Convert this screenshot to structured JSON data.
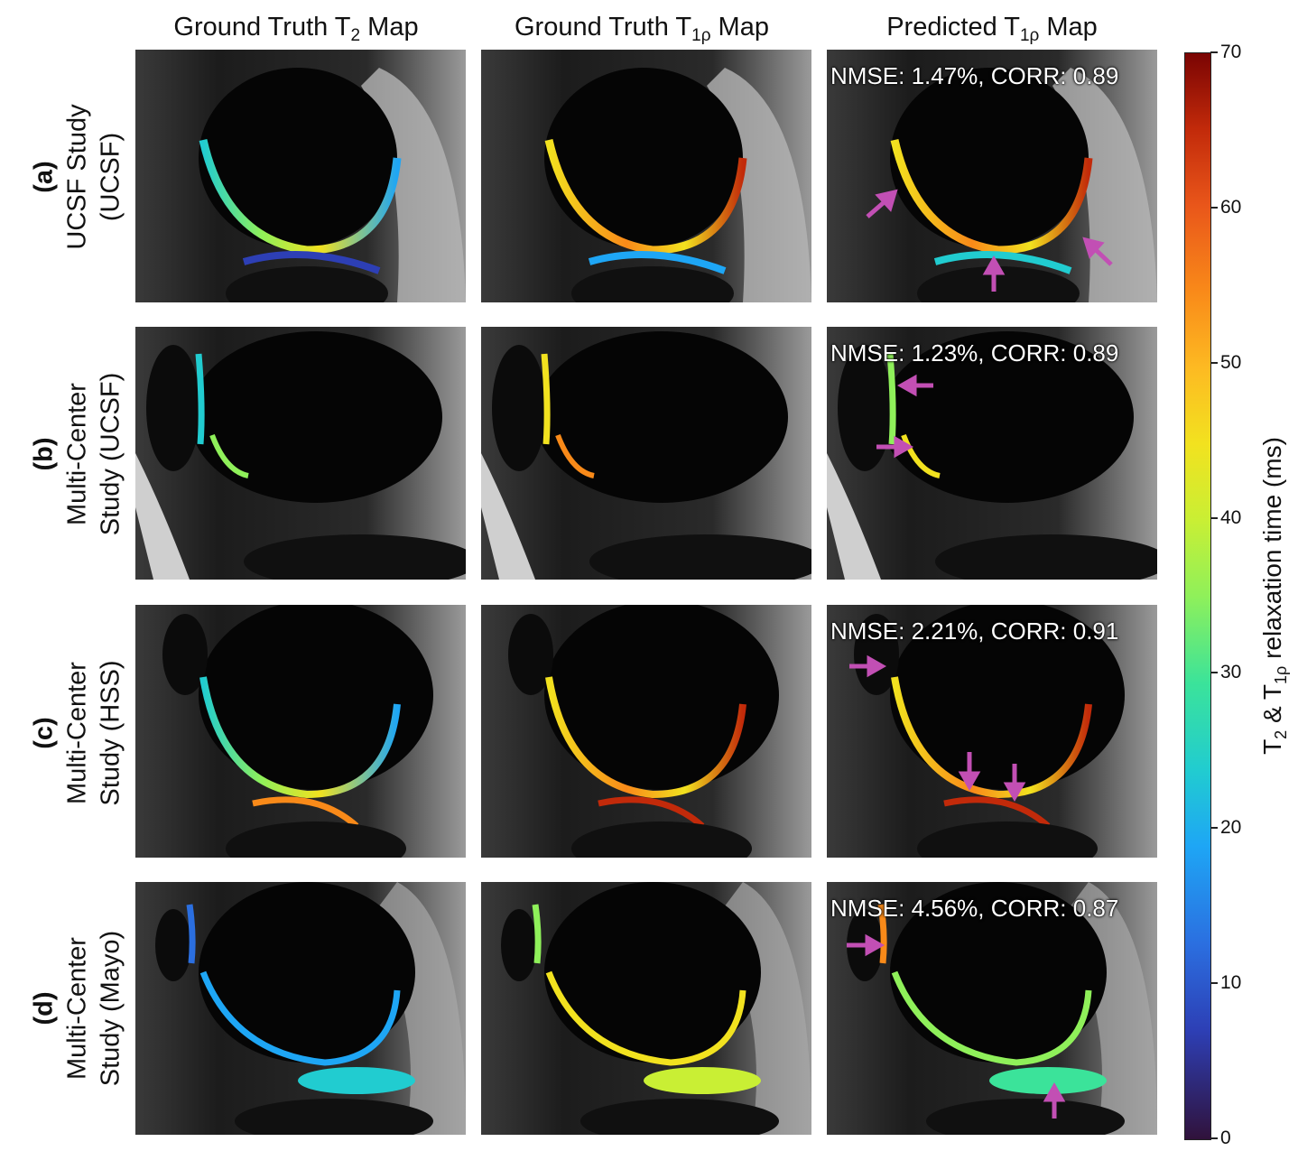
{
  "columns": {
    "c1": {
      "pre": "Ground Truth T",
      "sub": "2",
      "post": " Map"
    },
    "c2": {
      "pre": "Ground Truth T",
      "sub": "1ρ",
      "post": " Map"
    },
    "c3": {
      "pre": "Predicted T",
      "sub": "1ρ",
      "post": " Map"
    }
  },
  "rows": [
    {
      "tag": "(a)",
      "line1": "UCSF Study",
      "line2": "(UCSF)",
      "metric": "NMSE: 1.47%, CORR: 0.89"
    },
    {
      "tag": "(b)",
      "line1": "Multi-Center",
      "line2": "Study (UCSF)",
      "metric": "NMSE: 1.23%, CORR: 0.89"
    },
    {
      "tag": "(c)",
      "line1": "Multi-Center",
      "line2": "Study (HSS)",
      "metric": "NMSE: 2.21%, CORR: 0.91"
    },
    {
      "tag": "(d)",
      "line1": "Multi-Center",
      "line2": "Study (Mayo)",
      "metric": "NMSE: 4.56%, CORR: 0.87"
    }
  ],
  "colorbar": {
    "ticks": [
      "0",
      "10",
      "20",
      "30",
      "40",
      "50",
      "60",
      "70"
    ],
    "label": {
      "t": "T",
      "sub1": "2",
      "amp": " & T",
      "sub2": "1ρ",
      "rest": " relaxation time (ms)"
    },
    "range": [
      0,
      70
    ]
  }
}
